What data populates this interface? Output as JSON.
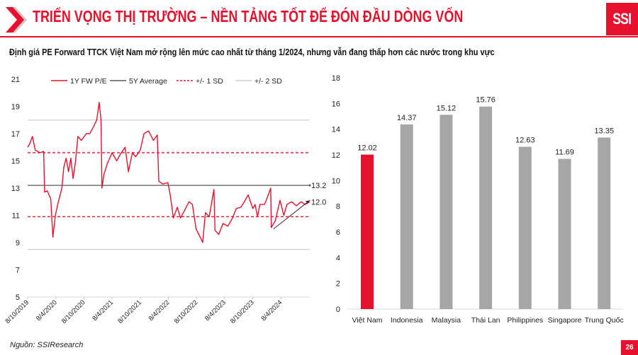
{
  "header": {
    "title": "TRIỂN VỌNG THỊ TRƯỜNG – NỀN TẢNG TỐT ĐỂ ĐÓN ĐẦU DÒNG VỐN",
    "logo_text": "SSI",
    "icon": "chevron-right-icon"
  },
  "subtitle": "Định giá PE Forward TTCK Việt Nam mở rộng lên mức cao nhất từ tháng 1/2024, nhưng vẫn đang thấp hơn các nước trong khu vực",
  "footer": {
    "source": "Nguồn: SSIResearch",
    "page_number": "26"
  },
  "colors": {
    "accent": "#e8112d",
    "bar_gray": "#a6a6a6",
    "avg_line": "#595959",
    "sd2_line": "#d0d0d0"
  },
  "chart_data": [
    {
      "type": "line",
      "legend": [
        "1Y FW P/E",
        "5Y Average",
        "+/- 1 SD",
        "+/- 2 SD"
      ],
      "legend_placement": "top",
      "ylim": [
        5,
        21
      ],
      "yticks": [
        "21",
        "19",
        "17",
        "15",
        "13",
        "11",
        "9",
        "7",
        "5"
      ],
      "xlim": [
        "2019-10-08",
        "2024-10-12"
      ],
      "xticks": [
        "8/10/2019",
        "8/4/2020",
        "8/10/2020",
        "8/4/2021",
        "8/10/2021",
        "8/4/2022",
        "8/10/2022",
        "8/4/2023",
        "8/10/2023",
        "8/4/2024"
      ],
      "xtick_dates": [
        "2019-10-08",
        "2020-04-08",
        "2020-10-08",
        "2021-04-08",
        "2021-10-08",
        "2022-04-08",
        "2022-10-08",
        "2023-04-08",
        "2023-10-08",
        "2024-04-08"
      ],
      "average": 13.2,
      "sd1": [
        15.6,
        10.9
      ],
      "sd2": [
        18.0,
        8.5
      ],
      "labels": {
        "average": "13.2",
        "last": "12.0"
      },
      "trend_arrow": {
        "from": [
          "2024-02-20",
          10.0
        ],
        "to": [
          "2024-10-12",
          12.1
        ]
      },
      "series": [
        {
          "name": "1Y FW P/E",
          "points": [
            [
              "2019-10-08",
              16.0
            ],
            [
              "2019-10-23",
              16.3
            ],
            [
              "2019-11-08",
              16.8
            ],
            [
              "2019-11-26",
              15.8
            ],
            [
              "2019-12-26",
              15.6
            ],
            [
              "2020-01-20",
              15.7
            ],
            [
              "2020-01-26",
              12.7
            ],
            [
              "2020-02-12",
              12.8
            ],
            [
              "2020-03-06",
              12.2
            ],
            [
              "2020-03-20",
              9.4
            ],
            [
              "2020-04-05",
              11.0
            ],
            [
              "2020-04-20",
              11.8
            ],
            [
              "2020-05-17",
              13.0
            ],
            [
              "2020-05-29",
              14.5
            ],
            [
              "2020-06-14",
              15.2
            ],
            [
              "2020-06-29",
              14.2
            ],
            [
              "2020-07-14",
              15.2
            ],
            [
              "2020-07-29",
              13.7
            ],
            [
              "2020-08-14",
              15.0
            ],
            [
              "2020-08-29",
              16.8
            ],
            [
              "2020-09-20",
              16.5
            ],
            [
              "2020-10-23",
              17.0
            ],
            [
              "2020-11-14",
              17.0
            ],
            [
              "2020-12-08",
              17.5
            ],
            [
              "2020-12-29",
              18.0
            ],
            [
              "2021-01-14",
              19.3
            ],
            [
              "2021-01-26",
              18.0
            ],
            [
              "2021-02-01",
              13.0
            ],
            [
              "2021-02-14",
              14.0
            ],
            [
              "2021-03-08",
              14.8
            ],
            [
              "2021-04-08",
              15.6
            ],
            [
              "2021-05-08",
              15.0
            ],
            [
              "2021-06-01",
              15.5
            ],
            [
              "2021-07-01",
              16.0
            ],
            [
              "2021-07-23",
              14.2
            ],
            [
              "2021-08-17",
              15.6
            ],
            [
              "2021-09-08",
              15.3
            ],
            [
              "2021-10-08",
              15.8
            ],
            [
              "2021-11-01",
              17.0
            ],
            [
              "2021-12-01",
              17.2
            ],
            [
              "2022-01-01",
              16.5
            ],
            [
              "2022-01-26",
              16.9
            ],
            [
              "2022-01-30",
              15.6
            ],
            [
              "2022-02-05",
              13.5
            ],
            [
              "2022-03-03",
              13.3
            ],
            [
              "2022-04-05",
              13.4
            ],
            [
              "2022-04-20",
              12.5
            ],
            [
              "2022-05-11",
              10.8
            ],
            [
              "2022-06-05",
              11.6
            ],
            [
              "2022-06-26",
              10.8
            ],
            [
              "2022-07-20",
              11.3
            ],
            [
              "2022-08-20",
              12.0
            ],
            [
              "2022-09-11",
              11.8
            ],
            [
              "2022-10-05",
              10.0
            ],
            [
              "2022-11-05",
              9.3
            ],
            [
              "2022-11-17",
              9.0
            ],
            [
              "2022-12-05",
              11.2
            ],
            [
              "2022-12-29",
              10.9
            ],
            [
              "2023-01-29",
              12.9
            ],
            [
              "2023-02-05",
              9.9
            ],
            [
              "2023-03-01",
              9.6
            ],
            [
              "2023-03-29",
              10.4
            ],
            [
              "2023-04-29",
              10.2
            ],
            [
              "2023-05-29",
              10.8
            ],
            [
              "2023-06-23",
              11.5
            ],
            [
              "2023-07-23",
              11.6
            ],
            [
              "2023-08-14",
              12.0
            ],
            [
              "2023-09-08",
              12.5
            ],
            [
              "2023-10-08",
              11.5
            ],
            [
              "2023-10-23",
              11.8
            ],
            [
              "2023-11-08",
              10.9
            ],
            [
              "2023-11-23",
              11.8
            ],
            [
              "2023-12-23",
              11.8
            ],
            [
              "2024-01-17",
              12.5
            ],
            [
              "2024-02-01",
              13.0
            ],
            [
              "2024-02-05",
              10.1
            ],
            [
              "2024-03-02",
              10.6
            ],
            [
              "2024-04-02",
              12.1
            ],
            [
              "2024-04-26",
              11.0
            ],
            [
              "2024-05-17",
              11.8
            ],
            [
              "2024-06-17",
              12.0
            ],
            [
              "2024-07-17",
              11.7
            ],
            [
              "2024-08-17",
              12.0
            ],
            [
              "2024-09-11",
              11.8
            ],
            [
              "2024-10-11",
              12.0
            ]
          ]
        }
      ]
    },
    {
      "type": "bar",
      "categories": [
        "Việt Nam",
        "Indonesia",
        "Malaysia",
        "Thái Lan",
        "Philippines",
        "Singapore",
        "Trung Quốc"
      ],
      "values": [
        12.02,
        14.37,
        15.12,
        15.76,
        12.63,
        11.69,
        13.35
      ],
      "value_labels": [
        "12.02",
        "14.37",
        "15.12",
        "15.76",
        "12.63",
        "11.69",
        "13.35"
      ],
      "highlight": "Việt Nam",
      "ylim": [
        0,
        18
      ],
      "yticks": [
        "0",
        "2",
        "4",
        "6",
        "8",
        "10",
        "12",
        "14",
        "16",
        "18"
      ]
    }
  ]
}
